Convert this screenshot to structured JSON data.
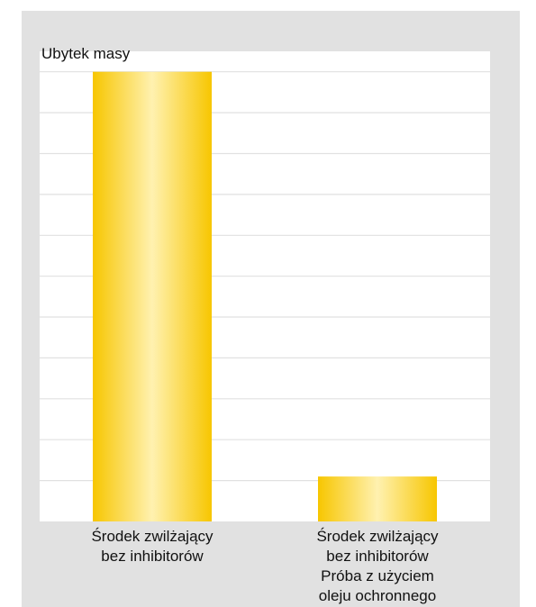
{
  "chart_data": {
    "type": "bar",
    "ylabel": "Ubytek masy",
    "categories": [
      [
        "Środek zwilżający",
        "bez inhibitorów"
      ],
      [
        "Środek zwilżający",
        "bez inhibitorów",
        "Próba z użyciem",
        "oleju ochronnego"
      ]
    ],
    "values": [
      11,
      1.1
    ],
    "ylim": [
      0,
      11.5
    ],
    "grid": true,
    "gridlines": 11,
    "y_tick_labels": false,
    "legend": "none",
    "colors": {
      "bar_edge": "#f7c600",
      "bar_center": "#fff1b0",
      "frame": "#e1e1e1",
      "plot_bg": "#ffffff",
      "grid": "#e1e1e1"
    }
  }
}
